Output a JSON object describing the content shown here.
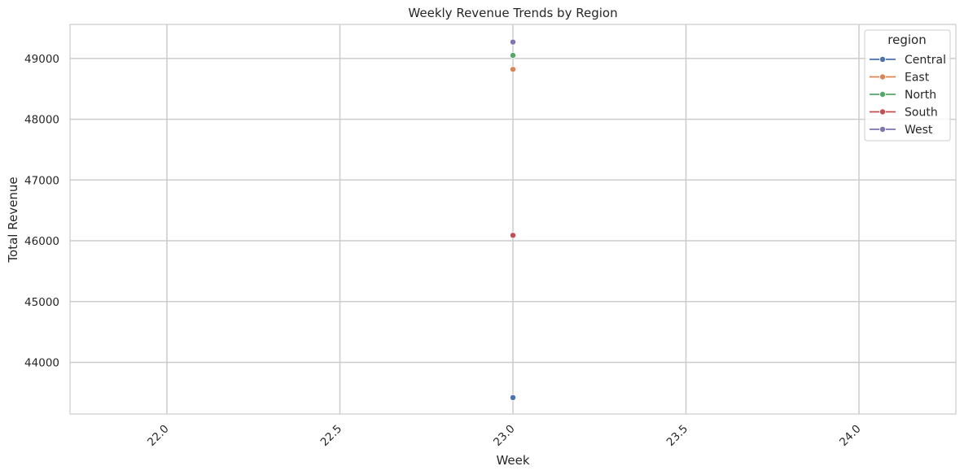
{
  "chart_data": {
    "type": "line",
    "title": "Weekly Revenue Trends by Region",
    "xlabel": "Week",
    "ylabel": "Total Revenue",
    "xlim": [
      21.72,
      24.28
    ],
    "ylim": [
      43150,
      49560
    ],
    "xticks": [
      22.0,
      22.5,
      23.0,
      23.5,
      24.0
    ],
    "xtick_labels": [
      "22.0",
      "22.5",
      "23.0",
      "23.5",
      "24.0"
    ],
    "yticks": [
      44000,
      45000,
      46000,
      47000,
      48000,
      49000
    ],
    "ytick_labels": [
      "44000",
      "45000",
      "46000",
      "47000",
      "48000",
      "49000"
    ],
    "xtick_rotation_deg": 45,
    "grid": true,
    "legend": {
      "title": "region",
      "position": "top-right"
    },
    "series": [
      {
        "name": "Central",
        "color": "#4c72b0",
        "x": [
          23.0
        ],
        "y": [
          43420
        ]
      },
      {
        "name": "East",
        "color": "#dd8452",
        "x": [
          23.0
        ],
        "y": [
          48820
        ]
      },
      {
        "name": "North",
        "color": "#55a868",
        "x": [
          23.0
        ],
        "y": [
          49050
        ]
      },
      {
        "name": "South",
        "color": "#c44e52",
        "x": [
          23.0
        ],
        "y": [
          46090
        ]
      },
      {
        "name": "West",
        "color": "#8172b3",
        "x": [
          23.0
        ],
        "y": [
          49270
        ]
      }
    ]
  }
}
